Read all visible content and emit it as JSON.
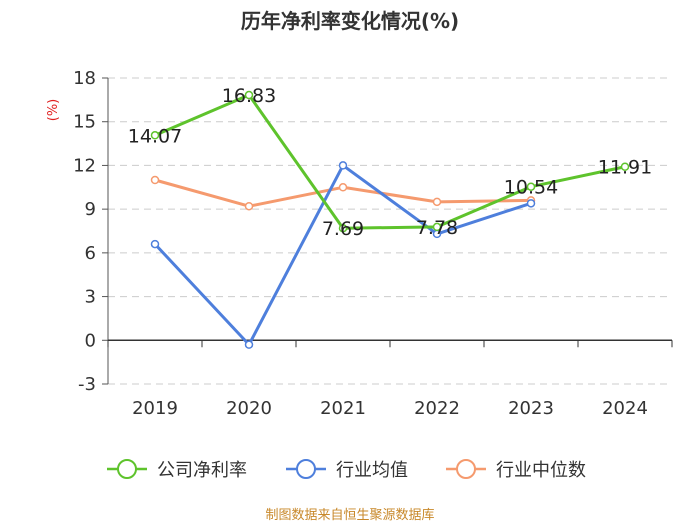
{
  "chart_data": {
    "type": "line",
    "title": "历年净利率变化情况(%)",
    "ylabel": "(%)",
    "xlabel": "",
    "categories": [
      "2019",
      "2020",
      "2021",
      "2022",
      "2023",
      "2024"
    ],
    "ylim": [
      -3,
      18
    ],
    "yticks": [
      18,
      15,
      12,
      9,
      6,
      3,
      0,
      -3
    ],
    "grid": true,
    "legend_position": "bottom",
    "series": [
      {
        "name": "公司净利率",
        "color": "#5ec32c",
        "values": [
          14.07,
          16.83,
          7.69,
          7.78,
          10.54,
          11.91
        ],
        "labels": [
          "14.07",
          "16.83",
          "7.69",
          "7.78",
          "10.54",
          "11.91"
        ]
      },
      {
        "name": "行业均值",
        "color": "#4e7fdc",
        "values": [
          6.6,
          -0.3,
          12.0,
          7.3,
          9.4,
          null
        ]
      },
      {
        "name": "行业中位数",
        "color": "#f59a6e",
        "values": [
          11.0,
          9.2,
          10.5,
          9.5,
          9.6,
          null
        ]
      }
    ],
    "source": "制图数据来自恒生聚源数据库"
  }
}
